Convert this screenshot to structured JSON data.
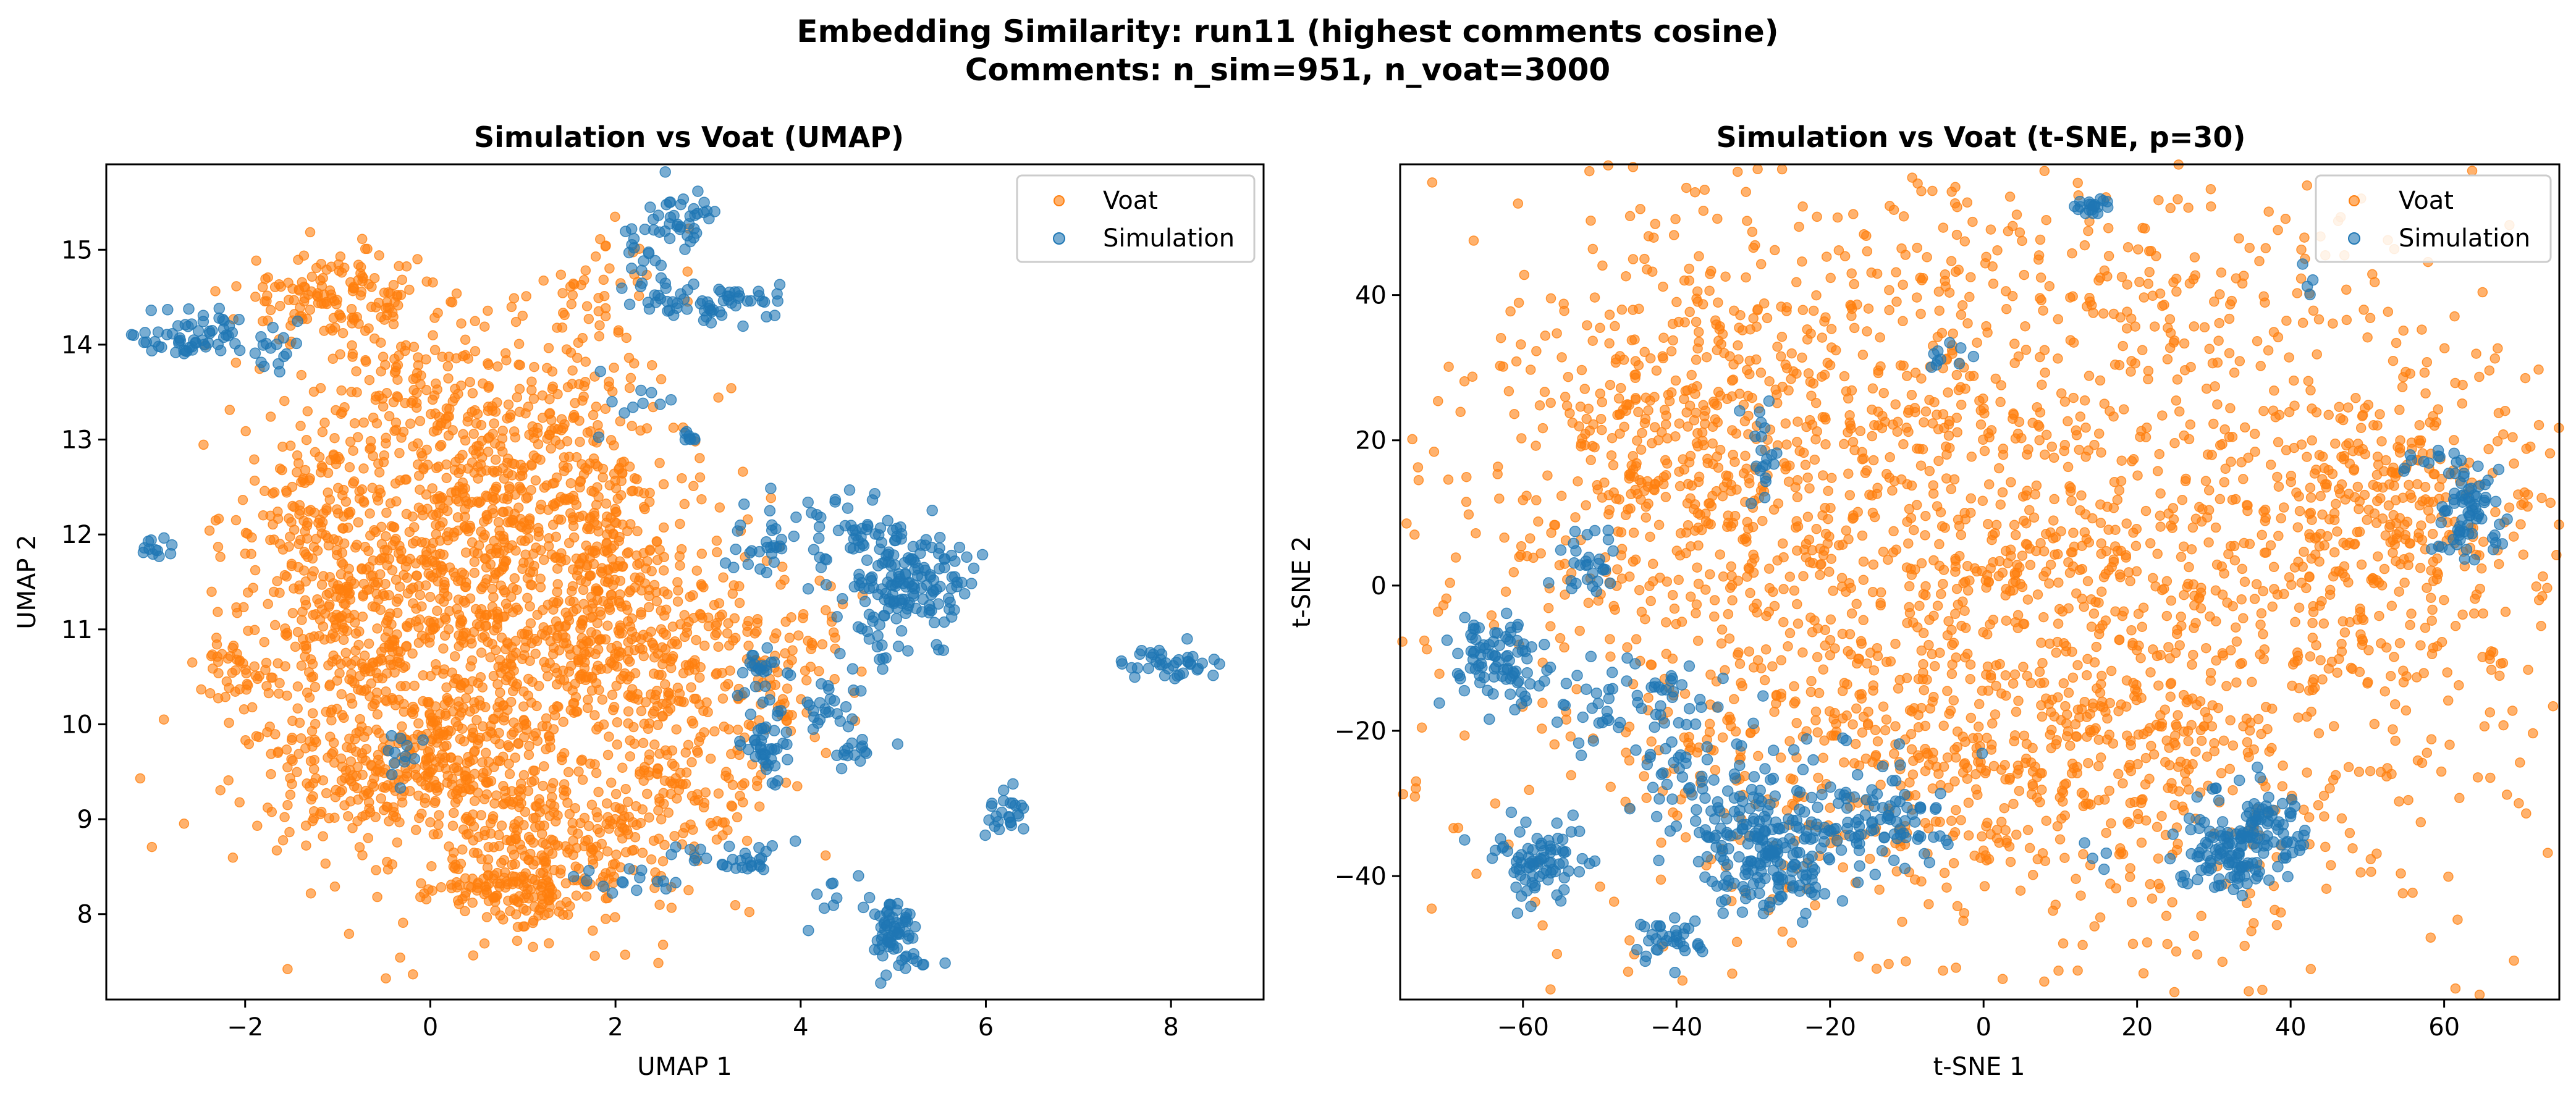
{
  "figure": {
    "title_line1": "Embedding Similarity: run11 (highest comments cosine)",
    "title_line2": "Comments: n_sim=951, n_voat=3000"
  },
  "colors": {
    "voat": "#ff7f0e",
    "simulation": "#1f77b4"
  },
  "chart_data": [
    {
      "type": "scatter",
      "title": "Simulation vs Voat (UMAP)",
      "xlabel": "UMAP 1",
      "ylabel": "UMAP 2",
      "xlim": [
        -3.5,
        9.0
      ],
      "ylim": [
        7.1,
        15.9
      ],
      "xticks": [
        -2,
        0,
        2,
        4,
        6,
        8
      ],
      "yticks": [
        8,
        9,
        10,
        11,
        12,
        13,
        14,
        15
      ],
      "grid": false,
      "legend_position": "upper right",
      "series": [
        {
          "name": "Voat",
          "color": "#ff7f0e",
          "point_count": 3000,
          "clusters": [
            {
              "center": [
                -1.0,
                14.5
              ],
              "spread": [
                0.55,
                0.25
              ],
              "n": 150
            },
            {
              "center": [
                0.0,
                13.3
              ],
              "spread": [
                0.6,
                0.45
              ],
              "n": 170
            },
            {
              "center": [
                -1.2,
                12.2
              ],
              "spread": [
                0.5,
                0.6
              ],
              "n": 180
            },
            {
              "center": [
                -0.8,
                10.9
              ],
              "spread": [
                0.5,
                0.45
              ],
              "n": 160
            },
            {
              "center": [
                0.2,
                11.8
              ],
              "spread": [
                0.55,
                0.55
              ],
              "n": 190
            },
            {
              "center": [
                1.0,
                12.3
              ],
              "spread": [
                0.55,
                0.6
              ],
              "n": 180
            },
            {
              "center": [
                2.0,
                11.8
              ],
              "spread": [
                0.45,
                0.55
              ],
              "n": 150
            },
            {
              "center": [
                1.3,
                10.9
              ],
              "spread": [
                0.6,
                0.5
              ],
              "n": 200
            },
            {
              "center": [
                2.6,
                10.6
              ],
              "spread": [
                0.55,
                0.6
              ],
              "n": 170
            },
            {
              "center": [
                0.2,
                9.7
              ],
              "spread": [
                0.5,
                0.4
              ],
              "n": 200
            },
            {
              "center": [
                -1.0,
                9.5
              ],
              "spread": [
                0.5,
                0.4
              ],
              "n": 130
            },
            {
              "center": [
                1.2,
                8.7
              ],
              "spread": [
                0.55,
                0.4
              ],
              "n": 200
            },
            {
              "center": [
                0.8,
                8.2
              ],
              "spread": [
                0.4,
                0.12
              ],
              "n": 80
            },
            {
              "center": [
                2.6,
                9.2
              ],
              "spread": [
                0.55,
                0.45
              ],
              "n": 130
            },
            {
              "center": [
                3.7,
                10.6
              ],
              "spread": [
                0.4,
                0.5
              ],
              "n": 90
            },
            {
              "center": [
                1.5,
                13.4
              ],
              "spread": [
                0.45,
                0.4
              ],
              "n": 80
            },
            {
              "center": [
                1.7,
                14.6
              ],
              "spread": [
                0.35,
                0.3
              ],
              "n": 40
            },
            {
              "center": [
                -2.0,
                10.6
              ],
              "spread": [
                0.25,
                0.25
              ],
              "n": 40
            },
            {
              "center": [
                0.5,
                10.3
              ],
              "spread": [
                1.4,
                1.4
              ],
              "n": 400
            },
            {
              "center": [
                1.5,
                12.0
              ],
              "spread": [
                1.2,
                1.2
              ],
              "n": 60
            }
          ]
        },
        {
          "name": "Simulation",
          "color": "#1f77b4",
          "point_count": 951,
          "clusters": [
            {
              "center": [
                -2.5,
                14.1
              ],
              "spread": [
                0.3,
                0.12
              ],
              "n": 60
            },
            {
              "center": [
                -1.65,
                13.95
              ],
              "spread": [
                0.15,
                0.15
              ],
              "n": 15
            },
            {
              "center": [
                -2.95,
                11.85
              ],
              "spread": [
                0.1,
                0.05
              ],
              "n": 12
            },
            {
              "center": [
                2.6,
                15.3
              ],
              "spread": [
                0.25,
                0.15
              ],
              "n": 40
            },
            {
              "center": [
                2.3,
                14.85
              ],
              "spread": [
                0.12,
                0.15
              ],
              "n": 15
            },
            {
              "center": [
                3.0,
                14.45
              ],
              "spread": [
                0.5,
                0.1
              ],
              "n": 60
            },
            {
              "center": [
                3.8,
                11.95
              ],
              "spread": [
                0.4,
                0.2
              ],
              "n": 40
            },
            {
              "center": [
                4.5,
                12.0
              ],
              "spread": [
                0.3,
                0.15
              ],
              "n": 30
            },
            {
              "center": [
                5.2,
                11.5
              ],
              "spread": [
                0.3,
                0.3
              ],
              "n": 130
            },
            {
              "center": [
                4.7,
                11.2
              ],
              "spread": [
                0.3,
                0.45
              ],
              "n": 40
            },
            {
              "center": [
                3.6,
                10.6
              ],
              "spread": [
                0.12,
                0.15
              ],
              "n": 20
            },
            {
              "center": [
                3.6,
                9.8
              ],
              "spread": [
                0.15,
                0.25
              ],
              "n": 45
            },
            {
              "center": [
                4.3,
                10.2
              ],
              "spread": [
                0.25,
                0.15
              ],
              "n": 20
            },
            {
              "center": [
                4.6,
                9.7
              ],
              "spread": [
                0.15,
                0.1
              ],
              "n": 15
            },
            {
              "center": [
                5.0,
                7.8
              ],
              "spread": [
                0.1,
                0.2
              ],
              "n": 60
            },
            {
              "center": [
                5.3,
                7.5
              ],
              "spread": [
                0.15,
                0.05
              ],
              "n": 10
            },
            {
              "center": [
                6.2,
                9.05
              ],
              "spread": [
                0.1,
                0.12
              ],
              "n": 25
            },
            {
              "center": [
                7.95,
                10.65
              ],
              "spread": [
                0.25,
                0.08
              ],
              "n": 40
            },
            {
              "center": [
                3.3,
                8.6
              ],
              "spread": [
                0.35,
                0.08
              ],
              "n": 30
            },
            {
              "center": [
                2.2,
                8.4
              ],
              "spread": [
                0.25,
                0.08
              ],
              "n": 15
            },
            {
              "center": [
                2.75,
                13.0
              ],
              "spread": [
                0.05,
                0.05
              ],
              "n": 8
            },
            {
              "center": [
                -0.4,
                9.7
              ],
              "spread": [
                0.15,
                0.15
              ],
              "n": 12
            },
            {
              "center": [
                4.3,
                8.2
              ],
              "spread": [
                0.2,
                0.1
              ],
              "n": 10
            },
            {
              "center": [
                2.0,
                13.4
              ],
              "spread": [
                0.3,
                0.2
              ],
              "n": 10
            }
          ]
        }
      ]
    },
    {
      "type": "scatter",
      "title": "Simulation vs Voat (t-SNE, p=30)",
      "xlabel": "t-SNE 1",
      "ylabel": "t-SNE 2",
      "xlim": [
        -76,
        75
      ],
      "ylim": [
        -57,
        58
      ],
      "xticks": [
        -60,
        -40,
        -20,
        0,
        20,
        40,
        60
      ],
      "yticks": [
        -40,
        -20,
        0,
        20,
        40
      ],
      "grid": false,
      "legend_position": "upper right",
      "series": [
        {
          "name": "Voat",
          "color": "#ff7f0e",
          "point_count": 3000,
          "clusters": [
            {
              "center": [
                0,
                3
              ],
              "spread": [
                38,
                28
              ],
              "n": 2100
            },
            {
              "center": [
                52,
                8
              ],
              "spread": [
                9,
                12
              ],
              "n": 260
            },
            {
              "center": [
                -40,
                20
              ],
              "spread": [
                10,
                12
              ],
              "n": 260
            },
            {
              "center": [
                10,
                -25
              ],
              "spread": [
                22,
                9
              ],
              "n": 300
            },
            {
              "center": [
                0,
                40
              ],
              "spread": [
                22,
                6
              ],
              "n": 80
            }
          ]
        },
        {
          "name": "Simulation",
          "color": "#1f77b4",
          "point_count": 951,
          "clusters": [
            {
              "center": [
                -63,
                -10
              ],
              "spread": [
                3,
                3.5
              ],
              "n": 90
            },
            {
              "center": [
                -58,
                -38
              ],
              "spread": [
                3,
                2.5
              ],
              "n": 80
            },
            {
              "center": [
                -41,
                -49
              ],
              "spread": [
                2,
                1.5
              ],
              "n": 35
            },
            {
              "center": [
                -45,
                -16
              ],
              "spread": [
                5,
                3
              ],
              "n": 60
            },
            {
              "center": [
                -38,
                -27
              ],
              "spread": [
                3,
                3
              ],
              "n": 40
            },
            {
              "center": [
                -27,
                -38
              ],
              "spread": [
                5,
                3.5
              ],
              "n": 170
            },
            {
              "center": [
                -12,
                -33
              ],
              "spread": [
                4,
                2.5
              ],
              "n": 60
            },
            {
              "center": [
                30,
                -36
              ],
              "spread": [
                3,
                3.5
              ],
              "n": 70
            },
            {
              "center": [
                36,
                -35
              ],
              "spread": [
                3,
                3.5
              ],
              "n": 100
            },
            {
              "center": [
                63,
                10
              ],
              "spread": [
                2.5,
                3.5
              ],
              "n": 70
            },
            {
              "center": [
                15,
                52
              ],
              "spread": [
                1.5,
                0.7
              ],
              "n": 20
            },
            {
              "center": [
                -51,
                4
              ],
              "spread": [
                2,
                2.5
              ],
              "n": 30
            },
            {
              "center": [
                -29,
                18
              ],
              "spread": [
                1.2,
                4
              ],
              "n": 20
            },
            {
              "center": [
                -5,
                31
              ],
              "spread": [
                2,
                1
              ],
              "n": 10
            },
            {
              "center": [
                -20,
                -27
              ],
              "spread": [
                8,
                3
              ],
              "n": 40
            },
            {
              "center": [
                -32,
                -33
              ],
              "spread": [
                3,
                3
              ],
              "n": 30
            },
            {
              "center": [
                58,
                17
              ],
              "spread": [
                2,
                1
              ],
              "n": 12
            },
            {
              "center": [
                15,
                -37
              ],
              "spread": [
                1,
                1
              ],
              "n": 4
            },
            {
              "center": [
                42,
                42
              ],
              "spread": [
                1,
                1
              ],
              "n": 4
            }
          ]
        }
      ]
    }
  ]
}
